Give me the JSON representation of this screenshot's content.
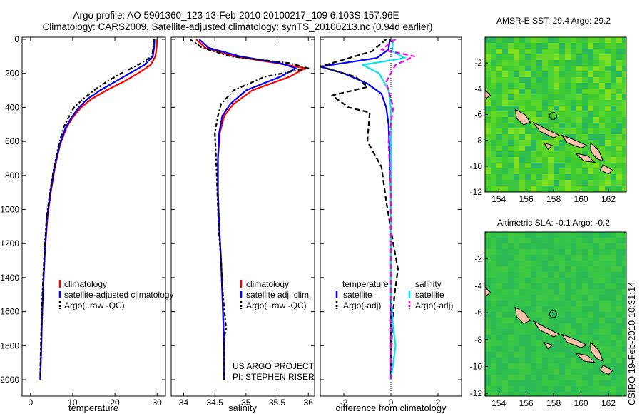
{
  "header": {
    "line1": "Argo profile: AO 5901360_123 13-Feb-2010 20100217_109 6.103S 157.96E",
    "line2": "Climatology: CARS2009. Satellite-adjusted climatology: synTS_20100213.nc (0.94d earlier)"
  },
  "colors": {
    "climatology": "#ff0000",
    "satellite": "#0000ff",
    "argo": "#000000",
    "sat_salinity": "#00e5ee",
    "argo_salinity": "#ee00ee"
  },
  "chart_data": [
    {
      "type": "line",
      "xlabel": "temperature",
      "ylim": [
        2000,
        0
      ],
      "xlim": [
        -2,
        32
      ],
      "xticks": [
        0,
        10,
        20,
        30
      ],
      "yticks": [
        0,
        200,
        400,
        600,
        800,
        1000,
        1200,
        1400,
        1600,
        1800,
        2000
      ],
      "series": [
        {
          "name": "climatology",
          "style": "solid",
          "color": "#ff0000",
          "x": [
            30.0,
            29.9,
            29.6,
            28.5,
            25.5,
            22.0,
            18.0,
            14.5,
            12.0,
            10.0,
            8.5,
            7.0,
            5.8,
            4.8,
            4.0,
            3.4,
            3.0,
            2.7,
            2.5,
            2.3
          ],
          "y": [
            0,
            50,
            100,
            150,
            200,
            250,
            300,
            350,
            400,
            460,
            520,
            620,
            750,
            900,
            1050,
            1250,
            1450,
            1650,
            1850,
            2000
          ]
        },
        {
          "name": "satellite-adjusted climatology",
          "style": "solid",
          "color": "#0000ff",
          "x": [
            29.4,
            29.3,
            29.0,
            27.0,
            23.5,
            20.0,
            16.5,
            13.5,
            11.5,
            9.7,
            8.3,
            6.9,
            5.7,
            4.7,
            3.9,
            3.4,
            3.0,
            2.7,
            2.5,
            2.3
          ],
          "y": [
            0,
            50,
            100,
            150,
            200,
            250,
            300,
            350,
            400,
            460,
            520,
            620,
            750,
            900,
            1050,
            1250,
            1450,
            1650,
            1850,
            2000
          ]
        },
        {
          "name": "Argo(..raw -QC)",
          "style": "dashdot",
          "color": "#000000",
          "x": [
            29.2,
            29.1,
            28.8,
            25.5,
            21.5,
            18.0,
            15.0,
            12.5,
            10.3,
            9.0,
            7.8,
            6.7,
            5.6,
            4.6,
            3.8,
            3.3,
            2.9,
            2.6,
            2.4,
            2.3
          ],
          "y": [
            0,
            50,
            100,
            150,
            200,
            250,
            300,
            350,
            400,
            460,
            520,
            620,
            750,
            900,
            1050,
            1250,
            1450,
            1650,
            1850,
            1980
          ]
        }
      ],
      "legend": [
        {
          "label": "climatology",
          "color": "#ff0000",
          "style": "solid"
        },
        {
          "label": "satellite-adjusted climatology",
          "color": "#0000ff",
          "style": "solid"
        },
        {
          "label": "Argo(..raw -QC)",
          "color": "#000000",
          "style": "dash"
        }
      ]
    },
    {
      "type": "line",
      "xlabel": "salinity",
      "ylim": [
        2000,
        0
      ],
      "xlim": [
        33.8,
        36.1
      ],
      "xticks": [
        34,
        34.5,
        35,
        35.5,
        36
      ],
      "series": [
        {
          "name": "climatology",
          "style": "solid",
          "color": "#ff0000",
          "x": [
            34.2,
            34.35,
            34.8,
            35.5,
            35.95,
            35.7,
            35.1,
            34.8,
            34.65,
            34.58,
            34.55,
            34.55,
            34.57,
            34.6,
            34.62,
            34.64,
            34.65,
            34.65
          ],
          "y": [
            0,
            50,
            100,
            140,
            170,
            220,
            300,
            380,
            450,
            550,
            700,
            900,
            1100,
            1300,
            1500,
            1700,
            1850,
            2000
          ]
        },
        {
          "name": "satellite adj. clim.",
          "style": "solid",
          "color": "#0000ff",
          "x": [
            34.25,
            34.4,
            34.9,
            35.55,
            35.8,
            35.55,
            35.0,
            34.75,
            34.62,
            34.57,
            34.55,
            34.55,
            34.57,
            34.6,
            34.62,
            34.64,
            34.65,
            34.65
          ],
          "y": [
            0,
            50,
            100,
            140,
            170,
            220,
            300,
            380,
            450,
            550,
            700,
            900,
            1100,
            1300,
            1500,
            1700,
            1850,
            2000
          ]
        },
        {
          "name": "Argo(..raw -QC)",
          "style": "dashdot",
          "color": "#000000",
          "x": [
            34.1,
            34.3,
            34.75,
            35.7,
            36.0,
            35.3,
            34.8,
            34.6,
            34.55,
            34.5,
            34.52,
            34.54,
            34.56,
            34.6,
            34.63,
            34.68,
            34.65,
            34.65
          ],
          "y": [
            0,
            50,
            100,
            140,
            170,
            220,
            300,
            380,
            450,
            550,
            700,
            900,
            1100,
            1300,
            1500,
            1700,
            1750,
            2000
          ]
        }
      ],
      "legend": [
        {
          "label": "climatology",
          "color": "#ff0000",
          "style": "solid"
        },
        {
          "label": "satellite adj. clim.",
          "color": "#0000ff",
          "style": "solid"
        },
        {
          "label": "Argo(..raw -QC)",
          "color": "#000000",
          "style": "dash"
        }
      ],
      "annotation": [
        "US ARGO PROJECT",
        "PI: STEPHEN RISER"
      ]
    },
    {
      "type": "line",
      "xlabel": "difference from climatology",
      "ylim": [
        2000,
        0
      ],
      "xlim": [
        -3,
        3
      ],
      "xticks": [
        -2,
        0,
        2
      ],
      "zero_line": "dotted",
      "series": [
        {
          "name": "temperature satellite",
          "style": "solid",
          "color": "#0000ff",
          "x": [
            -0.05,
            -0.1,
            -0.6,
            -3.0,
            -2.0,
            -1.0,
            -0.4,
            -0.2,
            -0.1,
            -0.05,
            0,
            0,
            0,
            0,
            0,
            0
          ],
          "y": [
            0,
            60,
            110,
            160,
            200,
            260,
            320,
            400,
            500,
            700,
            900,
            1200,
            1500,
            1700,
            1850,
            2000
          ]
        },
        {
          "name": "temperature Argo(-adj)",
          "style": "dashed",
          "color": "#000000",
          "x": [
            -0.2,
            -0.8,
            -3.0,
            -1.5,
            -1.0,
            -2.5,
            -1.8,
            -0.9,
            -1.0,
            -0.4,
            -0.2,
            0.1,
            0.3,
            0.15,
            0.05,
            0
          ],
          "y": [
            0,
            70,
            160,
            220,
            280,
            330,
            400,
            430,
            600,
            750,
            950,
            1200,
            1350,
            1500,
            1700,
            2000
          ]
        },
        {
          "name": "salinity satellite",
          "style": "solid",
          "color": "#00e5ee",
          "x": [
            0.1,
            0.05,
            0.6,
            -1.2,
            -0.5,
            -0.1,
            0,
            0,
            0,
            0,
            0,
            0.1,
            0.2,
            0.1,
            0
          ],
          "y": [
            0,
            70,
            110,
            150,
            200,
            300,
            400,
            600,
            900,
            1200,
            1500,
            1700,
            1800,
            1900,
            2000
          ]
        },
        {
          "name": "salinity Argo(-adj)",
          "style": "dashed",
          "color": "#ee00ee",
          "x": [
            0.2,
            -0.4,
            1.0,
            0.2,
            -0.2,
            0.1,
            -0.1,
            0,
            0,
            0,
            0,
            0
          ],
          "y": [
            0,
            60,
            100,
            150,
            250,
            400,
            600,
            900,
            1200,
            1500,
            1800,
            2000
          ]
        }
      ],
      "legend_left_title": "temperature",
      "legend_right_title": "salinity",
      "legend": [
        {
          "label": "satellite",
          "color": "#0000ff",
          "style": "solid"
        },
        {
          "label": "Argo(-adj)",
          "color": "#000000",
          "style": "dash"
        },
        {
          "label": "satellite",
          "color": "#00e5ee",
          "style": "solid"
        },
        {
          "label": "Argo(-adj)",
          "color": "#ee00ee",
          "style": "dash"
        }
      ]
    },
    {
      "type": "heatmap",
      "title": "AMSR-E SST: 29.4 Argo: 29.2",
      "xlim": [
        153,
        163.3
      ],
      "ylim": [
        -12,
        0
      ],
      "xticks": [
        154,
        156,
        158,
        160,
        162
      ],
      "yticks": [
        -2,
        -4,
        -6,
        -8,
        -10,
        -12
      ],
      "marker": {
        "lon": 157.96,
        "lat": -6.103
      }
    },
    {
      "type": "heatmap",
      "title": "Altimetric SLA: -0.1 Argo: -0.2",
      "xlim": [
        153,
        163.3
      ],
      "ylim": [
        -12.2,
        0
      ],
      "xticks": [
        154,
        156,
        158,
        160,
        162
      ],
      "yticks": [
        -2,
        -4,
        -6,
        -8,
        -10,
        -12
      ],
      "marker": {
        "lon": 157.96,
        "lat": -6.103
      }
    }
  ],
  "stamp": "CSIRO 19-Feb-2010 10:31:14"
}
